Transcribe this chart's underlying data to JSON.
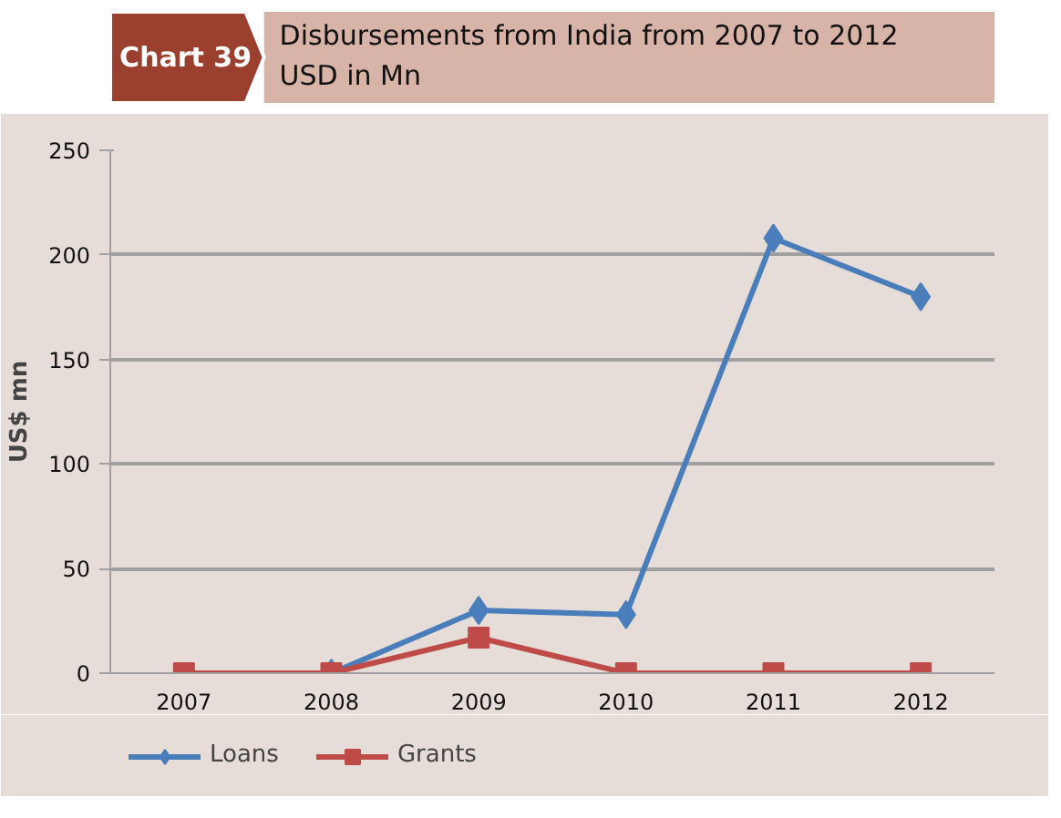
{
  "chart_data": {
    "type": "line",
    "title": "Disbursements from India from 2007 to 2012",
    "subtitle": "USD in Mn",
    "annotations": [
      "Chart 39"
    ],
    "ylabel": "US$ mn",
    "categories": [
      "2007",
      "2008",
      "2009",
      "2010",
      "2011",
      "2012"
    ],
    "series": [
      {
        "name": "Loans",
        "color": "#4a7ebb",
        "marker": "diamond",
        "values": [
          null,
          0,
          30,
          28,
          208,
          180
        ]
      },
      {
        "name": "Grants",
        "color": "#be4b48",
        "marker": "square",
        "values": [
          0,
          0,
          17,
          0,
          0,
          0
        ]
      }
    ],
    "ylim": [
      0,
      250
    ],
    "yticks": [
      0,
      50,
      100,
      150,
      200,
      250
    ],
    "grid": "y",
    "legend": "bottom",
    "line_style": "solid"
  }
}
